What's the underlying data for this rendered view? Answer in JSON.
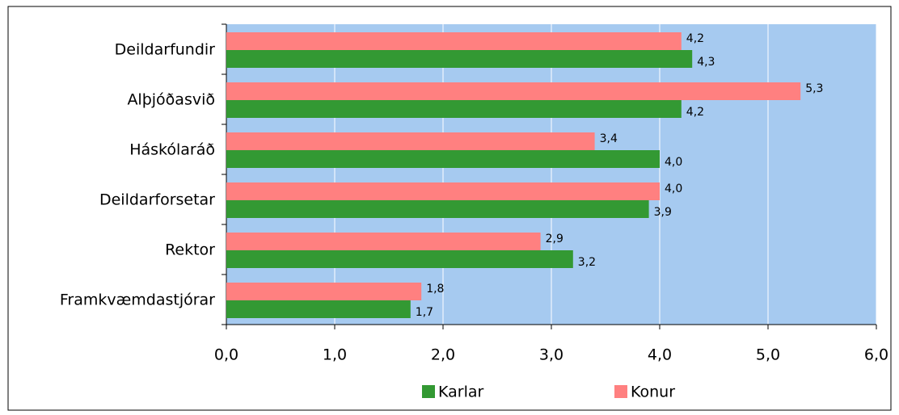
{
  "chart_data": {
    "type": "bar",
    "orientation": "horizontal",
    "categories": [
      "Deildarfundir",
      "Alþjóðasvið",
      "Háskólaráð",
      "Deildarforsetar",
      "Rektor",
      "Framkvæmdastjórar"
    ],
    "series": [
      {
        "name": "Karlar",
        "color": "#339933",
        "values": [
          4.3,
          4.2,
          4.0,
          3.9,
          3.2,
          1.7
        ],
        "value_labels": [
          "4,3",
          "4,2",
          "4,0",
          "3,9",
          "3,2",
          "1,7"
        ]
      },
      {
        "name": "Konur",
        "color": "#ff8080",
        "values": [
          4.2,
          5.3,
          3.4,
          4.0,
          2.9,
          1.8
        ],
        "value_labels": [
          "4,2",
          "5,3",
          "3,4",
          "4,0",
          "2,9",
          "1,8"
        ]
      }
    ],
    "xlim": [
      0,
      6
    ],
    "xticks": [
      {
        "value": 0,
        "label": "0,0"
      },
      {
        "value": 1,
        "label": "1,0"
      },
      {
        "value": 2,
        "label": "2,0"
      },
      {
        "value": 3,
        "label": "3,0"
      },
      {
        "value": 4,
        "label": "4,0"
      },
      {
        "value": 5,
        "label": "5,0"
      },
      {
        "value": 6,
        "label": "6,0"
      }
    ],
    "grid": true,
    "legend": "bottom",
    "plot_background": "#a6caf0"
  }
}
